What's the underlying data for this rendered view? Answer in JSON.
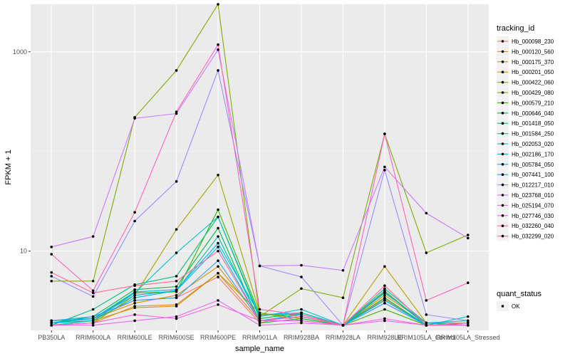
{
  "chart_data": {
    "type": "line",
    "xlabel": "sample_name",
    "ylabel": "FPKM + 1",
    "y_scale": "log10",
    "ylim": [
      1.6,
      3000
    ],
    "y_ticks": [
      {
        "value": 1000,
        "label": "1000"
      },
      {
        "value": 10,
        "label": "10"
      }
    ],
    "categories": [
      "PB350LA",
      "RRIM600LA",
      "RRIM600LE",
      "RRIM600SE",
      "RRIM600PE",
      "RRIM901LA",
      "RRIM928BA",
      "RRIM928LA",
      "RRIM928LE",
      "RRIM105LA_Control",
      "RRIM105LA_Stressed"
    ],
    "legend": {
      "title": "tracking_id",
      "position": "right",
      "shape_title": "quant_status",
      "shape_entries": [
        "OK"
      ]
    },
    "series": [
      {
        "name": "Hb_000098_230",
        "color": "#F8766D",
        "values": [
          1.9,
          2.1,
          3.2,
          3.4,
          5.5,
          1.9,
          2.4,
          1.8,
          3.0,
          1.8,
          1.9
        ]
      },
      {
        "name": "Hb_000120_560",
        "color": "#EA8331",
        "values": [
          1.8,
          1.9,
          2.8,
          2.9,
          6.0,
          2.0,
          2.2,
          1.8,
          3.3,
          1.8,
          1.8
        ]
      },
      {
        "name": "Hb_000175_370",
        "color": "#D89000",
        "values": [
          2.0,
          2.1,
          3.0,
          3.6,
          7.0,
          2.1,
          2.4,
          1.8,
          3.6,
          1.9,
          1.9
        ]
      },
      {
        "name": "Hb_000201_050",
        "color": "#C09B00",
        "values": [
          1.9,
          2.0,
          2.7,
          2.8,
          6.0,
          2.4,
          2.0,
          1.8,
          7.0,
          1.9,
          1.8
        ]
      },
      {
        "name": "Hb_000422_060",
        "color": "#A3A500",
        "values": [
          1.8,
          1.9,
          3.6,
          16.5,
          58.0,
          2.4,
          2.1,
          1.8,
          4.0,
          1.8,
          1.8
        ]
      },
      {
        "name": "Hb_000429_080",
        "color": "#7CAE00",
        "values": [
          5.0,
          5.0,
          220.0,
          650.0,
          3000.0,
          2.2,
          4.2,
          3.4,
          150.0,
          9.6,
          14.5
        ]
      },
      {
        "name": "Hb_000579_210",
        "color": "#39B600",
        "values": [
          2.0,
          2.1,
          3.8,
          3.9,
          26.0,
          2.3,
          2.3,
          1.8,
          2.6,
          1.8,
          1.8
        ]
      },
      {
        "name": "Hb_000646_040",
        "color": "#00BB4E",
        "values": [
          1.9,
          2.2,
          4.1,
          4.4,
          17.0,
          1.9,
          2.1,
          1.8,
          3.4,
          1.8,
          1.8
        ]
      },
      {
        "name": "Hb_001418_050",
        "color": "#00BF7D",
        "values": [
          1.8,
          2.6,
          4.6,
          5.6,
          22.0,
          2.1,
          2.4,
          1.8,
          3.8,
          1.9,
          1.8
        ]
      },
      {
        "name": "Hb_001584_250",
        "color": "#00C1A3",
        "values": [
          1.9,
          2.0,
          3.4,
          4.0,
          14.0,
          2.0,
          2.2,
          1.8,
          3.2,
          1.8,
          1.8
        ]
      },
      {
        "name": "Hb_002053_020",
        "color": "#00BFC4",
        "values": [
          1.8,
          2.0,
          3.8,
          9.6,
          22.0,
          2.2,
          2.6,
          1.8,
          4.2,
          1.9,
          2.0
        ]
      },
      {
        "name": "Hb_002186_170",
        "color": "#00BAE0",
        "values": [
          2.0,
          2.1,
          3.9,
          4.1,
          12.0,
          2.3,
          2.4,
          1.8,
          3.2,
          1.8,
          2.2
        ]
      },
      {
        "name": "Hb_005784_050",
        "color": "#00B0F6",
        "values": [
          1.9,
          2.1,
          3.6,
          4.0,
          11.0,
          2.0,
          2.3,
          1.8,
          3.9,
          1.8,
          1.8
        ]
      },
      {
        "name": "Hb_007441_100",
        "color": "#35A2FF",
        "values": [
          2.0,
          2.2,
          3.2,
          3.4,
          8.0,
          2.0,
          2.2,
          1.8,
          3.0,
          1.8,
          1.9
        ]
      },
      {
        "name": "Hb_012217_010",
        "color": "#9590FF",
        "values": [
          5.6,
          3.5,
          20.0,
          50.0,
          650.0,
          7.1,
          5.5,
          1.8,
          65.0,
          2.3,
          2.0
        ]
      },
      {
        "name": "Hb_023768_010",
        "color": "#C77CFF",
        "values": [
          11.0,
          14.0,
          215.0,
          240.0,
          1050.0,
          7.1,
          7.2,
          6.4,
          70.0,
          24.0,
          13.5
        ]
      },
      {
        "name": "Hb_025194_070",
        "color": "#E76BF3",
        "values": [
          1.8,
          1.8,
          2.0,
          2.2,
          3.2,
          1.8,
          1.9,
          1.8,
          2.0,
          1.8,
          1.8
        ]
      },
      {
        "name": "Hb_027746_030",
        "color": "#FA62DB",
        "values": [
          1.8,
          1.9,
          2.3,
          2.1,
          2.9,
          2.0,
          2.0,
          1.8,
          2.1,
          1.8,
          1.8
        ]
      },
      {
        "name": "Hb_032260_040",
        "color": "#FF62BC",
        "values": [
          9.3,
          4.0,
          24.5,
          250.0,
          1180.0,
          2.6,
          2.3,
          1.8,
          150.0,
          3.2,
          4.8
        ]
      },
      {
        "name": "Hb_032299_020",
        "color": "#FF6C91",
        "values": [
          6.1,
          3.8,
          4.5,
          5.0,
          10.0,
          2.0,
          2.2,
          1.8,
          4.5,
          1.8,
          1.9
        ]
      }
    ]
  }
}
